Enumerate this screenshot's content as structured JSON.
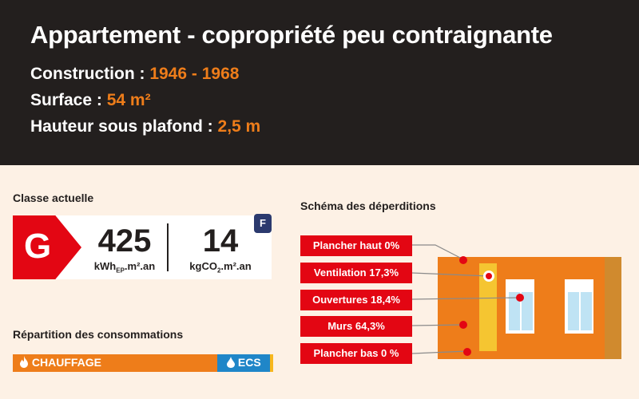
{
  "header": {
    "title": "Appartement - copropriété peu contraignante",
    "construction_label": "Construction : ",
    "construction_value": "1946 - 1968",
    "surface_label": "Surface : ",
    "surface_value": "54 m²",
    "hauteur_label": "Hauteur sous plafond : ",
    "hauteur_value": "2,5 m"
  },
  "classe": {
    "label": "Classe actuelle",
    "grade": "G",
    "energy_value": "425",
    "energy_unit_a": "kWh",
    "energy_unit_sub": "EP",
    "energy_unit_b": ".m².an",
    "co2_value": "14",
    "co2_unit_a": "kgCO",
    "co2_unit_sub": "2",
    "co2_unit_b": ".m².an",
    "co2_grade": "F",
    "grade_color": "#e30613",
    "co2_grade_color": "#2b3a6e"
  },
  "repartition": {
    "label": "Répartition des consommations",
    "chauffage_label": "CHAUFFAGE",
    "chauffage_icon": "flame-icon",
    "ecs_label": "ECS",
    "ecs_icon": "droplet-icon",
    "chauffage_color": "#ee7d1a",
    "ecs_color": "#1f86c8"
  },
  "schema": {
    "label": "Schéma des déperditions",
    "items": [
      {
        "label": "Plancher haut 0%"
      },
      {
        "label": "Ventilation  17,3%"
      },
      {
        "label": "Ouvertures 18,4%"
      },
      {
        "label": "Murs 64,3%"
      },
      {
        "label": "Plancher bas 0 %"
      }
    ]
  },
  "colors": {
    "accent": "#ee7d1a",
    "header_bg": "#231f1e",
    "page_bg": "#fdf1e5",
    "tag_red": "#e30613"
  }
}
